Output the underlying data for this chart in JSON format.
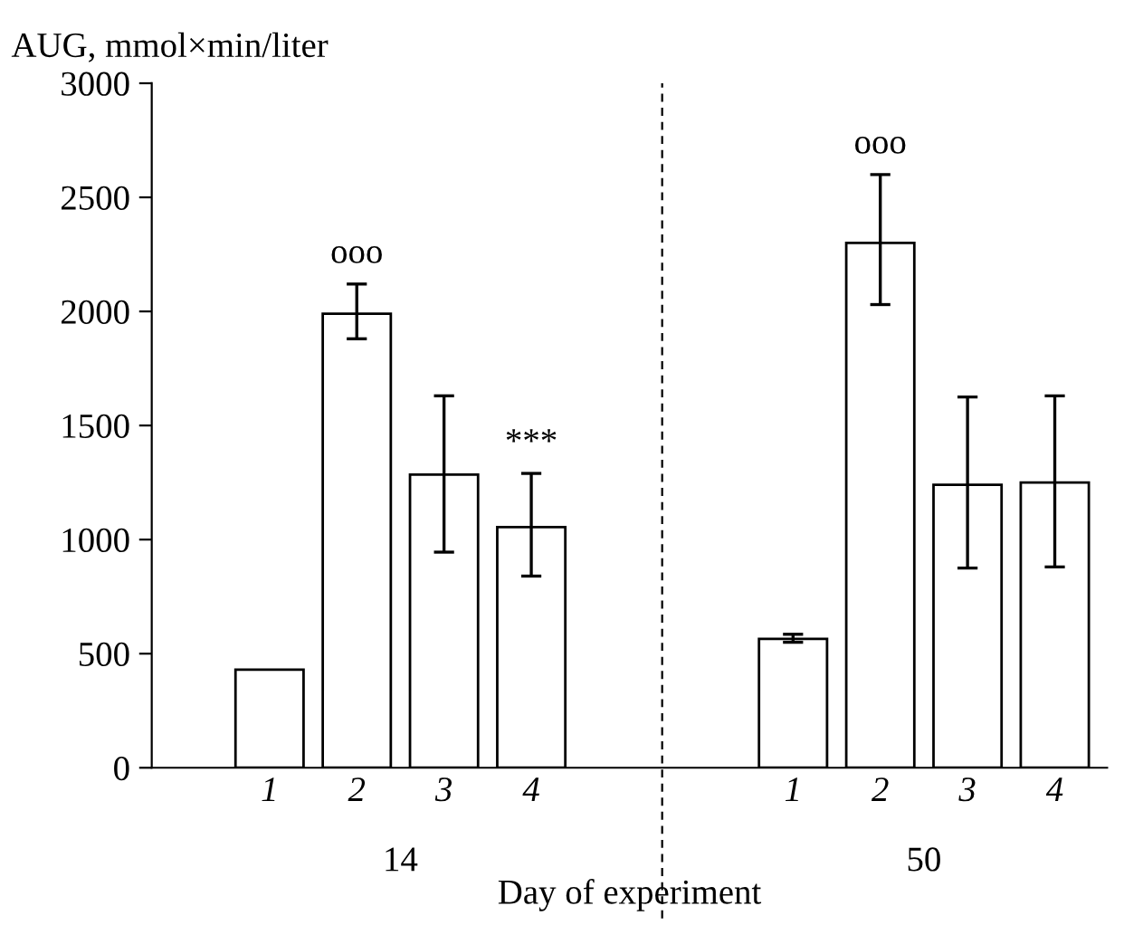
{
  "chart_data": {
    "type": "bar",
    "ylabel": "AUG, mmol×min/liter",
    "xlabel": "Day of experiment",
    "categories": [
      "1",
      "2",
      "3",
      "4",
      null,
      null,
      "1",
      "2",
      "3",
      "4"
    ],
    "values": [
      430,
      1990,
      1285,
      1055,
      null,
      null,
      565,
      2300,
      1240,
      1250
    ],
    "errors": [
      null,
      [
        1880,
        2120
      ],
      [
        945,
        1630
      ],
      [
        840,
        1290
      ],
      null,
      null,
      [
        550,
        585
      ],
      [
        2030,
        2600
      ],
      [
        875,
        1625
      ],
      [
        880,
        1630
      ]
    ],
    "color": "#ffffff",
    "ylim": [
      0,
      3000
    ],
    "yticks": [
      0,
      500,
      1000,
      1500,
      2000,
      2500,
      3000
    ],
    "grid": false,
    "annotations": [
      "ooo",
      "***",
      "ooo",
      "14",
      "50"
    ]
  }
}
